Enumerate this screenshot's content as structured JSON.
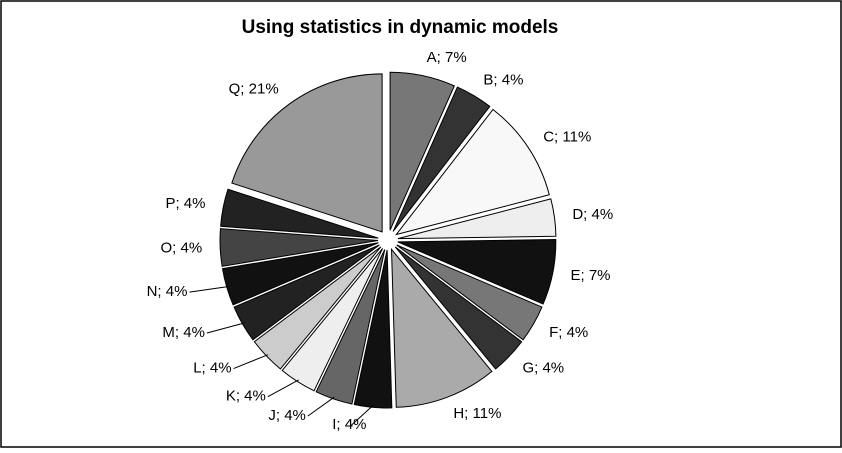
{
  "chart_data": {
    "type": "pie",
    "title": "Using statistics in dynamic models",
    "categories": [
      "A",
      "B",
      "C",
      "D",
      "E",
      "F",
      "G",
      "H",
      "I",
      "J",
      "K",
      "L",
      "M",
      "N",
      "O",
      "P",
      "Q"
    ],
    "values": [
      7,
      4,
      11,
      4,
      7,
      4,
      4,
      11,
      4,
      4,
      4,
      4,
      4,
      4,
      4,
      4,
      21
    ],
    "value_labels": [
      "A; 7%",
      "B; 4%",
      "C; 11%",
      "D; 4%",
      "E; 7%",
      "F; 4%",
      "G; 4%",
      "H; 11%",
      "I; 4%",
      "J; 4%",
      "K; 4%",
      "L; 4%",
      "M; 4%",
      "N; 4%",
      "O; 4%",
      "P; 4%",
      "Q; 21%"
    ],
    "colors": [
      "#777777",
      "#333333",
      "#f8f8f8",
      "#eeeeee",
      "#111111",
      "#777777",
      "#333333",
      "#aaaaaa",
      "#111111",
      "#666666",
      "#eeeeee",
      "#cccccc",
      "#222222",
      "#111111",
      "#444444",
      "#222222",
      "#999999"
    ]
  }
}
